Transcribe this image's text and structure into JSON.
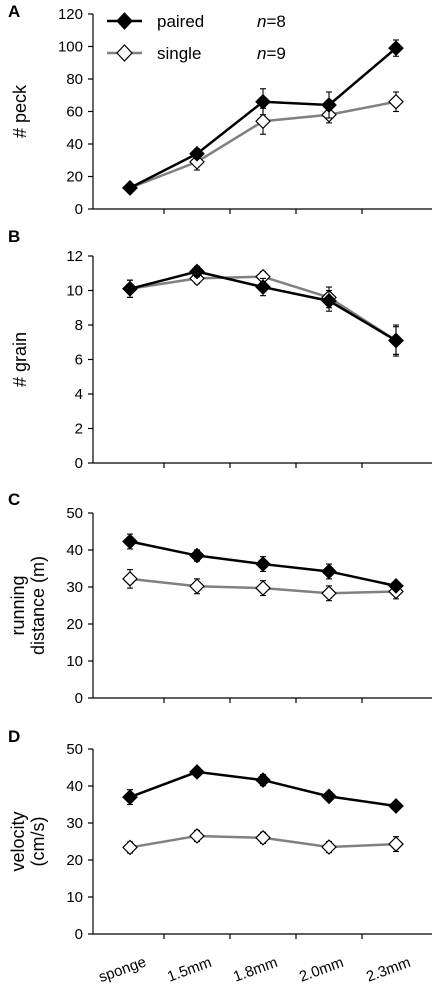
{
  "legend": {
    "paired": {
      "label": "paired",
      "n_italic": "n",
      "n_rest": "=8"
    },
    "single": {
      "label": "single",
      "n_italic": "n",
      "n_rest": "=9"
    }
  },
  "colors": {
    "paired": "#000000",
    "single": "#808080",
    "marker_open_fill": "#ffffff"
  },
  "chart_data": [
    {
      "panel": "A",
      "type": "line",
      "ylabel": "# peck",
      "ylim": [
        0,
        120
      ],
      "yticks": [
        0,
        20,
        40,
        60,
        80,
        100,
        120
      ],
      "categories": [
        "sponge",
        "1.5mm",
        "1.8mm",
        "2.0mm",
        "2.3mm"
      ],
      "series": [
        {
          "name": "paired",
          "values": [
            13,
            34,
            66,
            64,
            99
          ],
          "errors": [
            2,
            3,
            8,
            8,
            5
          ]
        },
        {
          "name": "single",
          "values": [
            13,
            29,
            54,
            58,
            66
          ],
          "errors": [
            2,
            5,
            8,
            5,
            6
          ]
        }
      ]
    },
    {
      "panel": "B",
      "type": "line",
      "ylabel": "# grain",
      "ylim": [
        0,
        12
      ],
      "yticks": [
        0,
        2,
        4,
        6,
        8,
        10,
        12
      ],
      "categories": [
        "sponge",
        "1.5mm",
        "1.8mm",
        "2.0mm",
        "2.3mm"
      ],
      "series": [
        {
          "name": "paired",
          "values": [
            10.1,
            11.1,
            10.2,
            9.4,
            7.1
          ],
          "errors": [
            0.5,
            0.3,
            0.5,
            0.6,
            0.8
          ]
        },
        {
          "name": "single",
          "values": [
            10.1,
            10.7,
            10.8,
            9.6,
            7.1
          ],
          "errors": [
            0.5,
            0.3,
            0.3,
            0.6,
            0.9
          ]
        }
      ]
    },
    {
      "panel": "C",
      "type": "line",
      "ylabel_lines": [
        "running",
        "distance (m)"
      ],
      "ylim": [
        0,
        50
      ],
      "yticks": [
        0,
        10,
        20,
        30,
        40,
        50
      ],
      "categories": [
        "sponge",
        "1.5mm",
        "1.8mm",
        "2.0mm",
        "2.3mm"
      ],
      "series": [
        {
          "name": "paired",
          "values": [
            42.3,
            38.5,
            36.2,
            34.2,
            30.3
          ],
          "errors": [
            2,
            1.5,
            2,
            2,
            1
          ]
        },
        {
          "name": "single",
          "values": [
            32.2,
            30.2,
            29.7,
            28.3,
            28.8
          ],
          "errors": [
            2.5,
            2,
            2,
            2,
            2
          ]
        }
      ]
    },
    {
      "panel": "D",
      "type": "line",
      "ylabel_lines": [
        "velocity",
        "(cm/s)"
      ],
      "ylim": [
        0,
        50
      ],
      "yticks": [
        0,
        10,
        20,
        30,
        40,
        50
      ],
      "categories": [
        "sponge",
        "1.5mm",
        "1.8mm",
        "2.0mm",
        "2.3mm"
      ],
      "series": [
        {
          "name": "paired",
          "values": [
            37,
            43.8,
            41.6,
            37.2,
            34.6
          ],
          "errors": [
            2,
            1,
            1.5,
            1,
            1
          ]
        },
        {
          "name": "single",
          "values": [
            23.4,
            26.5,
            26,
            23.5,
            24.3
          ],
          "errors": [
            1.5,
            1.5,
            1.5,
            1.5,
            2
          ]
        }
      ]
    }
  ]
}
